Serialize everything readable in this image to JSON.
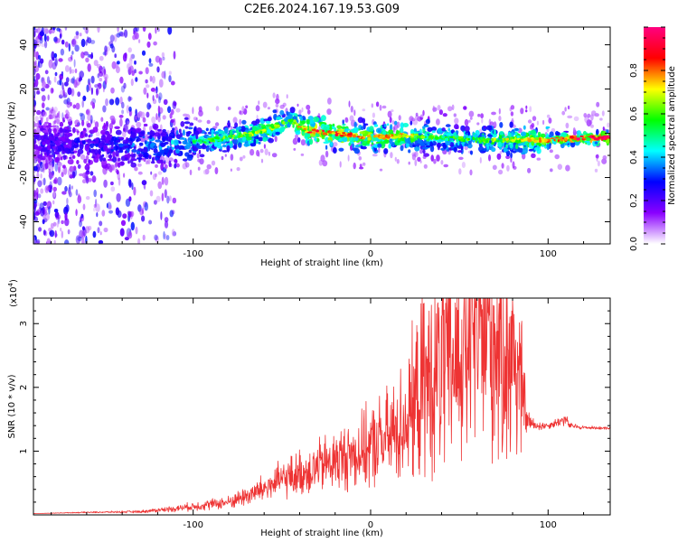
{
  "figure_title": "C2E6.2024.167.19.53.G09",
  "chart_data": [
    {
      "type": "heatmap",
      "xlabel": "Height of straight line (km)",
      "ylabel": "Frequency (Hz)",
      "xlim": [
        -190,
        135
      ],
      "ylim": [
        -50,
        48
      ],
      "x_ticks": [
        -100,
        0,
        100
      ],
      "x_tick_labels": [
        "-100",
        "0",
        "100"
      ],
      "y_ticks": [
        -40,
        -20,
        0,
        20,
        40
      ],
      "y_tick_labels": [
        "-40",
        "-20",
        "0",
        "20",
        "40"
      ],
      "colorbar": {
        "label": "Normalized spectral amplitude",
        "range": [
          0,
          1
        ],
        "ticks": [
          0,
          0.2,
          0.4,
          0.6,
          0.8
        ],
        "tick_labels": [
          "0.0",
          "0.2",
          "0.4",
          "0.6",
          "0.8"
        ],
        "colormap": [
          "#ffffff",
          "#8a00ff",
          "#0000ff",
          "#00ffff",
          "#00ff00",
          "#ffff00",
          "#ff0000",
          "#ff0080"
        ]
      },
      "ridge": {
        "x": [
          -190,
          -150,
          -120,
          -100,
          -80,
          -60,
          -45,
          -35,
          -20,
          0,
          20,
          40,
          60,
          80,
          100,
          120,
          135
        ],
        "y": [
          -4,
          -6,
          -5,
          -4,
          -2,
          1,
          6,
          1,
          0,
          -2,
          -1,
          -2,
          -3,
          -3,
          -3,
          -2,
          -2
        ],
        "amplitude": [
          0.25,
          0.3,
          0.4,
          0.45,
          0.55,
          0.6,
          0.55,
          0.8,
          0.75,
          0.7,
          0.65,
          0.5,
          0.55,
          0.6,
          0.7,
          0.85,
          0.9
        ]
      }
    },
    {
      "type": "line",
      "xlabel": "Height of straight line (km)",
      "ylabel": "SNR (10 * v/v)",
      "y_multiplier_label": "(x10",
      "y_multiplier_exponent": "4",
      "y_multiplier_close": ")",
      "xlim": [
        -190,
        135
      ],
      "ylim": [
        0,
        3.4
      ],
      "x_ticks": [
        -100,
        0,
        100
      ],
      "x_tick_labels": [
        "-100",
        "0",
        "100"
      ],
      "y_ticks": [
        1,
        2,
        3
      ],
      "y_tick_labels": [
        "1",
        "2",
        "3"
      ],
      "line_color": "#ee3333",
      "envelope": {
        "x": [
          -190,
          -160,
          -130,
          -110,
          -95,
          -80,
          -65,
          -50,
          -35,
          -20,
          -5,
          10,
          20,
          30,
          40,
          50,
          60,
          70,
          80,
          85,
          88,
          92,
          100,
          110,
          112,
          120,
          135
        ],
        "y": [
          0.02,
          0.04,
          0.05,
          0.1,
          0.15,
          0.2,
          0.35,
          0.55,
          0.7,
          0.85,
          1.0,
          1.2,
          1.5,
          2.0,
          2.3,
          2.5,
          3.0,
          2.8,
          2.6,
          2.0,
          1.5,
          1.4,
          1.4,
          1.5,
          1.4,
          1.37,
          1.36
        ],
        "spread": [
          0.0,
          0.01,
          0.02,
          0.05,
          0.08,
          0.1,
          0.2,
          0.3,
          0.4,
          0.5,
          0.6,
          0.8,
          1.0,
          1.5,
          1.8,
          2.0,
          2.3,
          2.2,
          2.0,
          1.2,
          0.2,
          0.1,
          0.05,
          0.1,
          0.05,
          0.03,
          0.02
        ]
      }
    }
  ]
}
